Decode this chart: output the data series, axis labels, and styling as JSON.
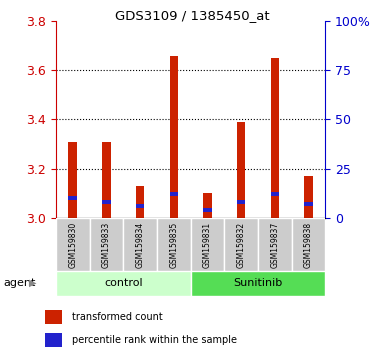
{
  "title": "GDS3109 / 1385450_at",
  "samples": [
    "GSM159830",
    "GSM159833",
    "GSM159834",
    "GSM159835",
    "GSM159831",
    "GSM159832",
    "GSM159837",
    "GSM159838"
  ],
  "groups": [
    "control",
    "control",
    "control",
    "control",
    "Sunitinib",
    "Sunitinib",
    "Sunitinib",
    "Sunitinib"
  ],
  "transformed_counts": [
    3.31,
    3.31,
    3.13,
    3.66,
    3.1,
    3.39,
    3.65,
    3.17
  ],
  "percentile_ranks": [
    10,
    8,
    6,
    12,
    4,
    8,
    12,
    7
  ],
  "ylim_left": [
    3.0,
    3.8
  ],
  "ylim_right": [
    0,
    100
  ],
  "yticks_left": [
    3.0,
    3.2,
    3.4,
    3.6,
    3.8
  ],
  "yticks_right": [
    0,
    25,
    50,
    75,
    100
  ],
  "yticklabels_right": [
    "0",
    "25",
    "50",
    "75",
    "100%"
  ],
  "left_tick_color": "#cc0000",
  "right_tick_color": "#0000cc",
  "bar_color_red": "#cc2200",
  "bar_color_blue": "#2222cc",
  "control_bg_light": "#ccffcc",
  "control_bg_dark": "#55dd55",
  "sample_bg": "#cccccc",
  "grid_color": "#000000",
  "bar_width": 0.25,
  "group_labels": [
    "control",
    "Sunitinib"
  ],
  "legend_red": "transformed count",
  "legend_blue": "percentile rank within the sample",
  "agent_label": "agent",
  "pct_bar_height": 0.018
}
